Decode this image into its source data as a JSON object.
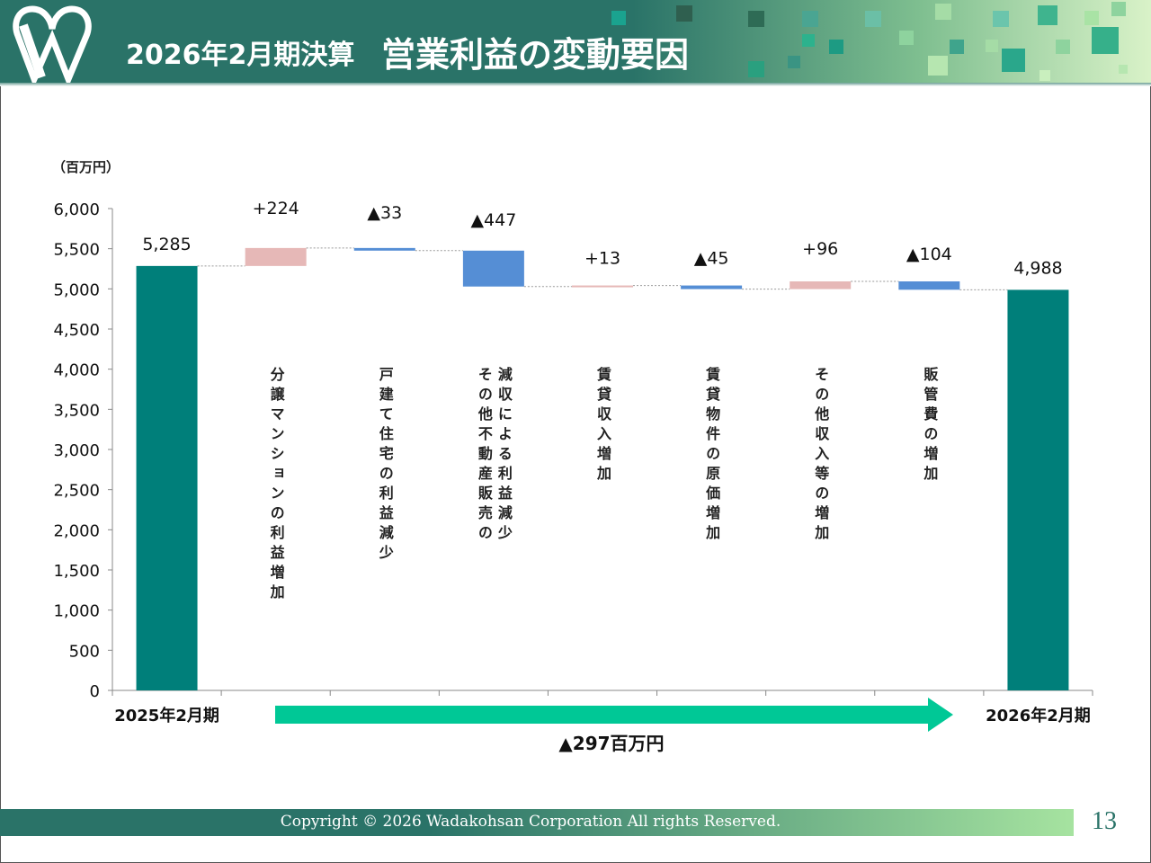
{
  "header": {
    "subtitle": "2026年2月期決算",
    "title": "営業利益の変動要因",
    "logo": "W"
  },
  "chart_data": {
    "type": "waterfall",
    "unit_label": "（百万円）",
    "ylim": [
      0,
      6000
    ],
    "yticks": [
      0,
      500,
      1000,
      1500,
      2000,
      2500,
      3000,
      3500,
      4000,
      4500,
      5000,
      5500,
      6000
    ],
    "ytick_labels": [
      "0",
      "500",
      "1,000",
      "1,500",
      "2,000",
      "2,500",
      "3,000",
      "3,500",
      "4,000",
      "4,500",
      "5,000",
      "5,500",
      "6,000"
    ],
    "categories": [
      "2025年2月期",
      "分譲マンションの利益増加",
      "戸建て住宅の利益減少",
      "その他不動産販売の減収による利益減少",
      "賃貸収入増加",
      "賃貸物件の原価増加",
      "その他収入等の増加",
      "販管費の増加",
      "2026年2月期"
    ],
    "x_labels": [
      "2025年2月期",
      "",
      "",
      "",
      "",
      "",
      "",
      "",
      "2026年2月期"
    ],
    "kinds": [
      "total",
      "delta",
      "delta",
      "delta",
      "delta",
      "delta",
      "delta",
      "delta",
      "total"
    ],
    "values": [
      5285,
      224,
      -33,
      -447,
      13,
      -45,
      96,
      -104,
      4988
    ],
    "data_labels": [
      "5,285",
      "+224",
      "▲33",
      "▲447",
      "+13",
      "▲45",
      "+96",
      "▲104",
      "4,988"
    ],
    "colors": {
      "total": "#007f7a",
      "increase": "#e6b8b7",
      "decrease": "#558ed5"
    },
    "grid": false,
    "summary_arrow": {
      "label": "▲297百万円",
      "color": "#00c896"
    }
  },
  "footer": {
    "copyright": "Copyright © 2026  Wadakohsan Corporation All rights Reserved.",
    "page": "13"
  }
}
